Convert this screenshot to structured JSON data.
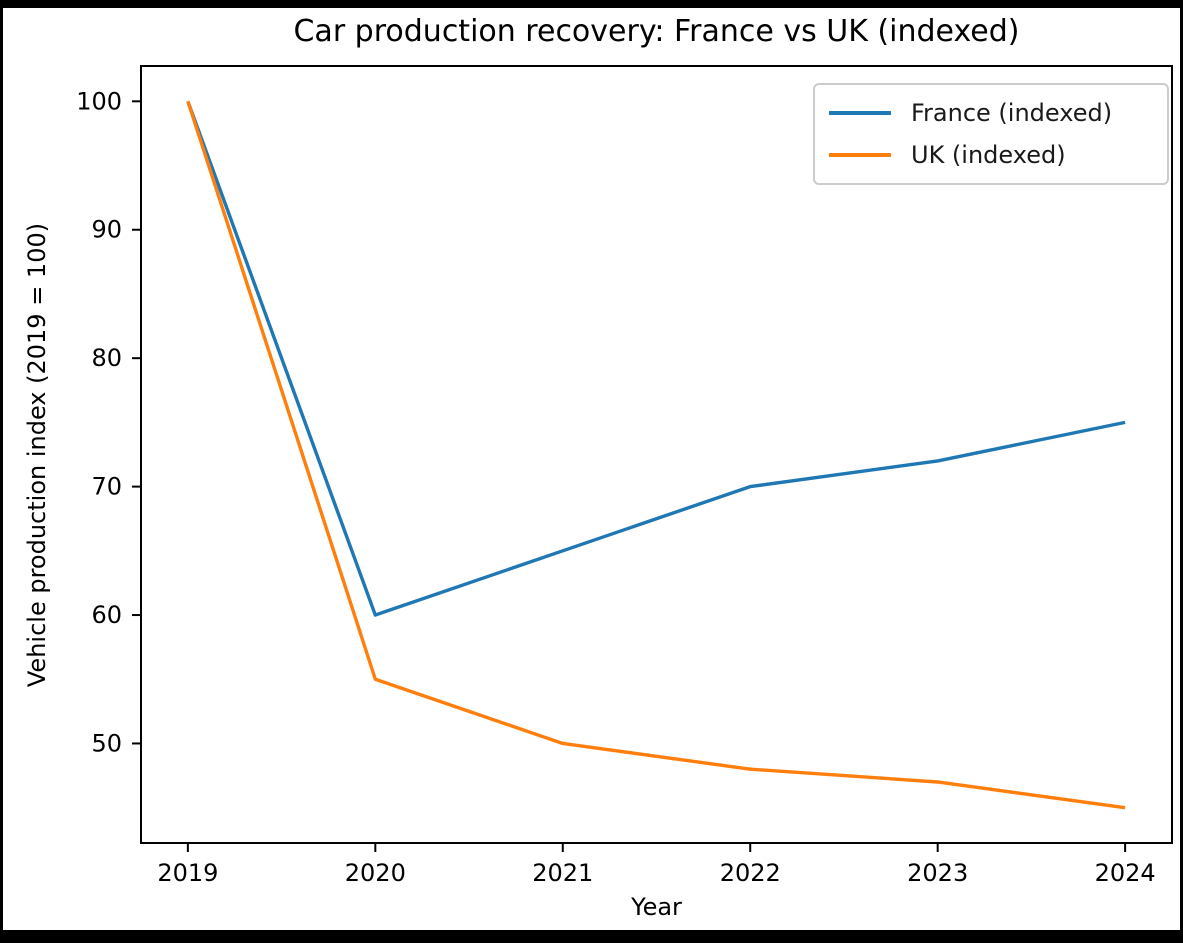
{
  "title": "Car production recovery: France vs UK (indexed)",
  "chart_data": {
    "type": "line",
    "title": "Car production recovery: France vs UK (indexed)",
    "xlabel": "Year",
    "ylabel": "Vehicle production index (2019 = 100)",
    "x": [
      2019,
      2020,
      2021,
      2022,
      2023,
      2024
    ],
    "series": [
      {
        "name": "France (indexed)",
        "color": "#1f77b4",
        "values": [
          100,
          60,
          65,
          70,
          72,
          75
        ]
      },
      {
        "name": "UK (indexed)",
        "color": "#ff7f0e",
        "values": [
          100,
          55,
          50,
          48,
          47,
          45
        ]
      }
    ],
    "xticks": [
      2019,
      2020,
      2021,
      2022,
      2023,
      2024
    ],
    "yticks": [
      50,
      60,
      70,
      80,
      90,
      100
    ],
    "xlim": [
      2018.75,
      2024.25
    ],
    "ylim": [
      42.25,
      102.75
    ],
    "grid": false,
    "legend_position": "upper right",
    "axis_color": "#000000",
    "background_color": "#ffffff",
    "frame_color": "#000000"
  }
}
